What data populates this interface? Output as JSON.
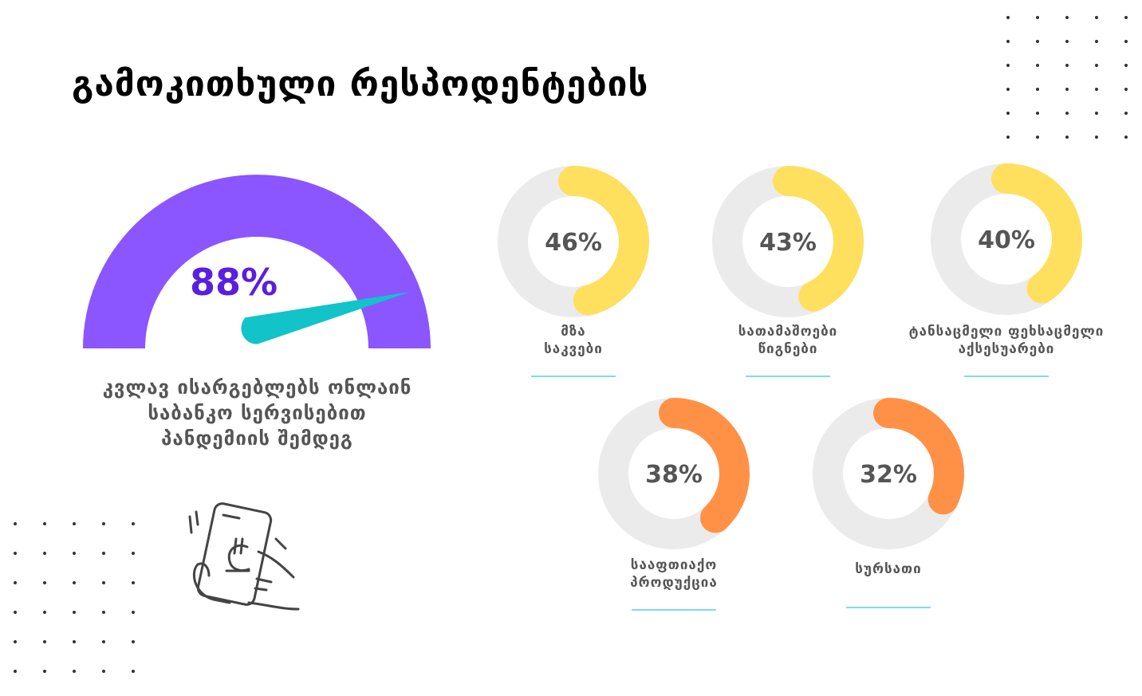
{
  "title": "გამოკითხული რესპოდენტების",
  "chart_data": [
    {
      "type": "gauge",
      "value": 88,
      "max": 100,
      "label": "88%",
      "caption_lines": [
        "კვლავ ისარგებლებს ონლაინ",
        "საბანკო სერვისებით",
        "პანდემიის შემდეგ"
      ],
      "color": "#8b55ff",
      "needle_color": "#12c3c9",
      "value_color": "#5a1fe0"
    },
    {
      "type": "pie",
      "categories": [
        "მზა საკვები",
        "სათამაშოები წიგნები",
        "ტანსაცმელი ფეხსაცმელი აქსესუარები",
        "სააფთიაქო პროდუქცია",
        "სურსათი"
      ],
      "values": [
        46,
        43,
        40,
        38,
        32
      ],
      "labels": [
        "46%",
        "43%",
        "40%",
        "38%",
        "32%"
      ],
      "captions": [
        [
          "მზა",
          "საკვები"
        ],
        [
          "სათამაშოები",
          "წიგნები"
        ],
        [
          "ტანსაცმელი ფეხსაცმელი",
          "აქსესუარები"
        ],
        [
          "სააფთიაქო",
          "პროდუქცია"
        ],
        [
          "სურსათი"
        ]
      ],
      "colors": [
        "#ffdf5e",
        "#ffdf5e",
        "#ffdf5e",
        "#ff9147",
        "#ff9147"
      ],
      "track_color": "#ebebeb"
    }
  ],
  "icons": {
    "phone": "phone-payment-lari-icon",
    "dots": "dot-grid-decoration"
  }
}
